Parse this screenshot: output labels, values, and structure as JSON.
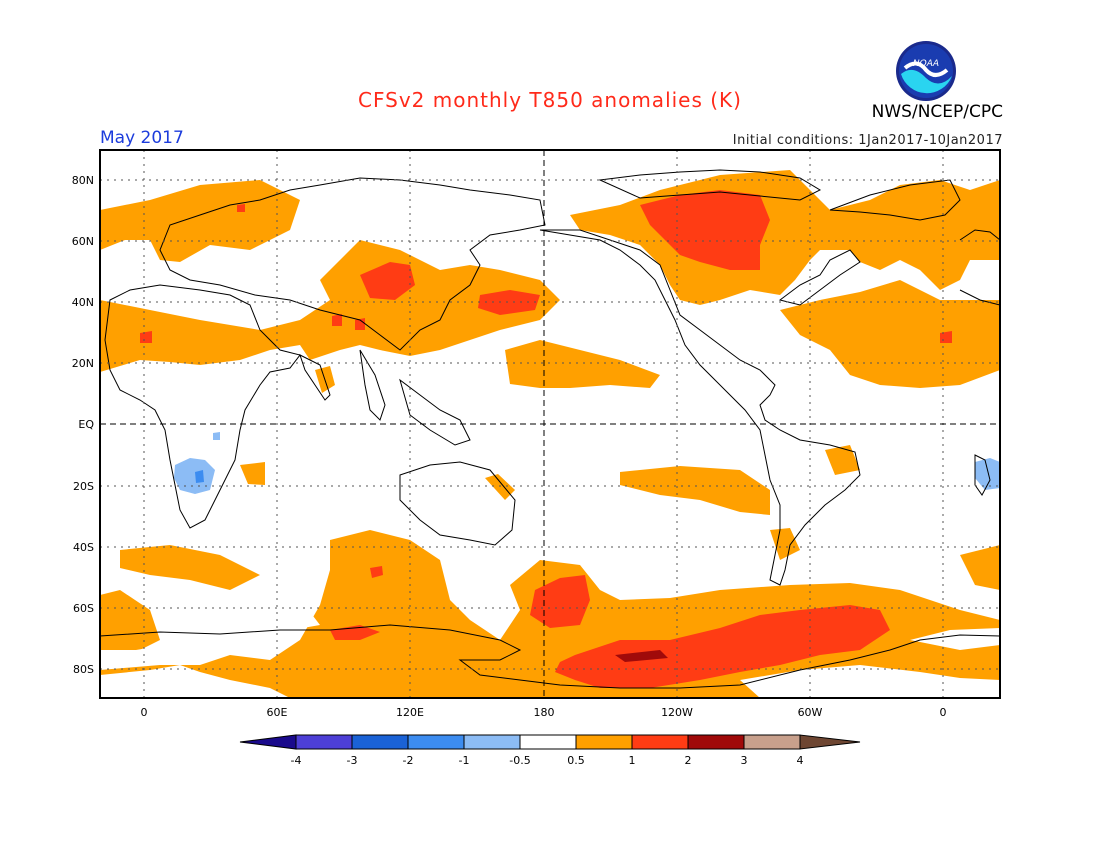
{
  "title": "CFSv2 monthly T850 anomalies (K)",
  "valid_month": "May 2017",
  "initial_conditions": "Initial conditions: 1Jan2017-10Jan2017",
  "agency": "NWS/NCEP/CPC",
  "logo_text": "NOAA",
  "lat_labels": [
    "80N",
    "60N",
    "40N",
    "20N",
    "EQ",
    "20S",
    "40S",
    "60S",
    "80S"
  ],
  "lon_labels": [
    "0",
    "60E",
    "120E",
    "180",
    "120W",
    "60W",
    "0"
  ],
  "colorbar": {
    "tick_labels": [
      "-4",
      "-3",
      "-2",
      "-1",
      "-0.5",
      "0.5",
      "1",
      "2",
      "3",
      "4"
    ],
    "colors": [
      "#1a0a8c",
      "#4d3fd6",
      "#1a62d6",
      "#3c8cf0",
      "#8cbcf5",
      "#ffffff",
      "#ffa000",
      "#ff3c14",
      "#a00a0a",
      "#c8a08c",
      "#6e4632"
    ]
  }
}
